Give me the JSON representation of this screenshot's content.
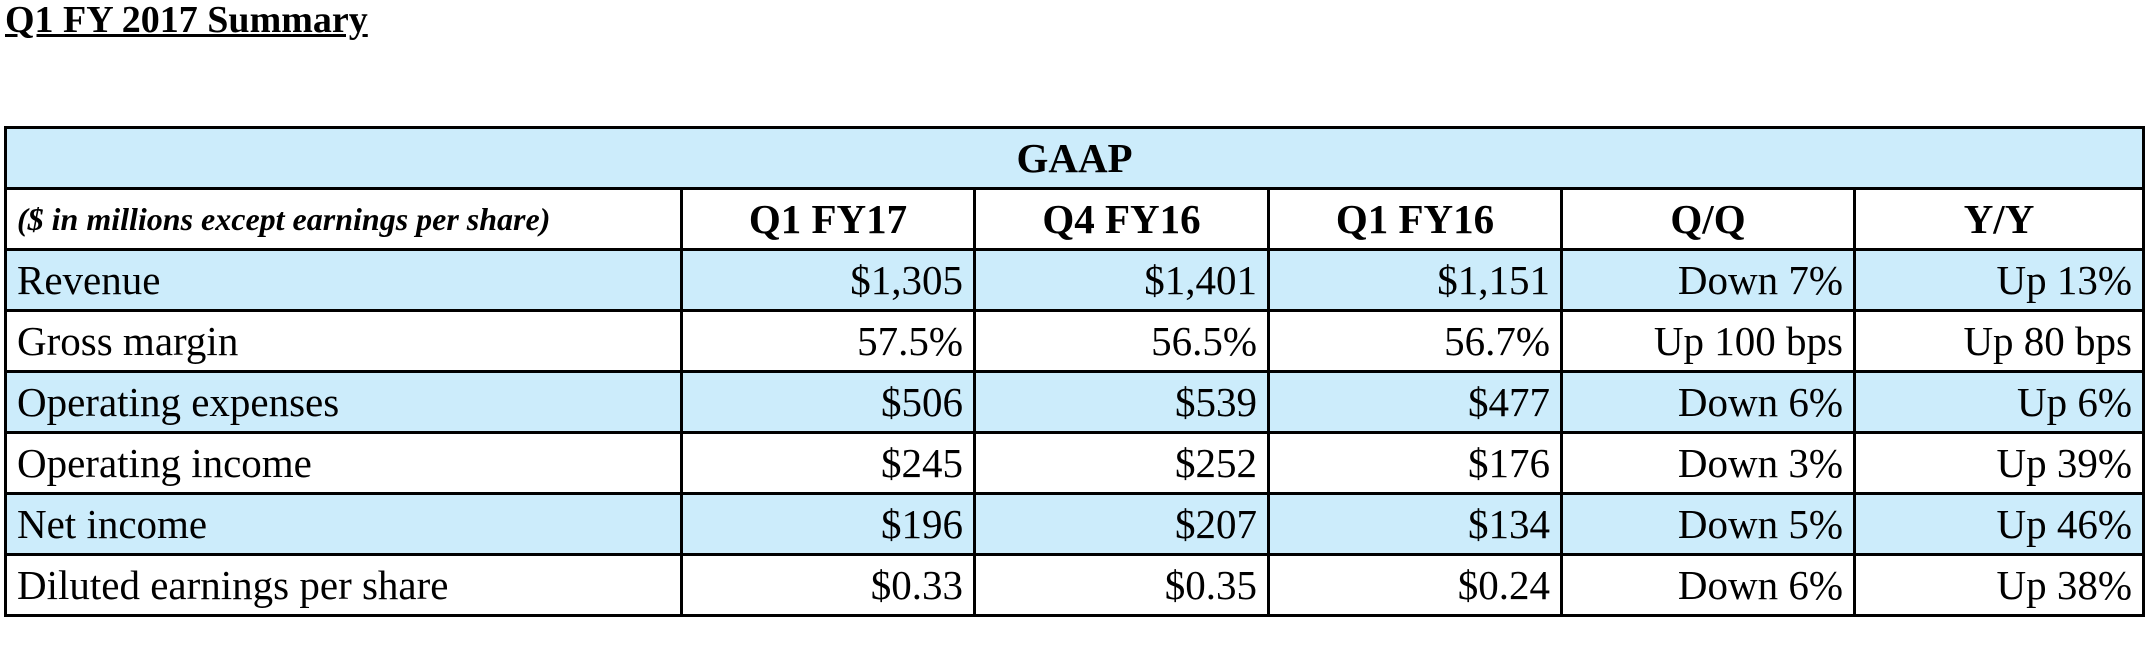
{
  "title": "Q1 FY 2017 Summary",
  "table": {
    "group_header": "GAAP",
    "columns": [
      "($ in millions except earnings per share)",
      "Q1 FY17",
      "Q4 FY16",
      "Q1 FY16",
      "Q/Q",
      "Y/Y"
    ],
    "rows": [
      [
        "Revenue",
        "$1,305",
        "$1,401",
        "$1,151",
        "Down 7%",
        "Up 13%"
      ],
      [
        "Gross margin",
        "57.5%",
        "56.5%",
        "56.7%",
        "Up 100 bps",
        "Up 80 bps"
      ],
      [
        "Operating expenses",
        "$506",
        "$539",
        "$477",
        "Down 6%",
        "Up 6%"
      ],
      [
        "Operating income",
        "$245",
        "$252",
        "$176",
        "Down 3%",
        "Up 39%"
      ],
      [
        "Net income",
        "$196",
        "$207",
        "$134",
        "Down 5%",
        "Up 46%"
      ],
      [
        "Diluted earnings per share",
        "$0.33",
        "$0.35",
        "$0.24",
        "Down 6%",
        "Up 38%"
      ]
    ]
  }
}
